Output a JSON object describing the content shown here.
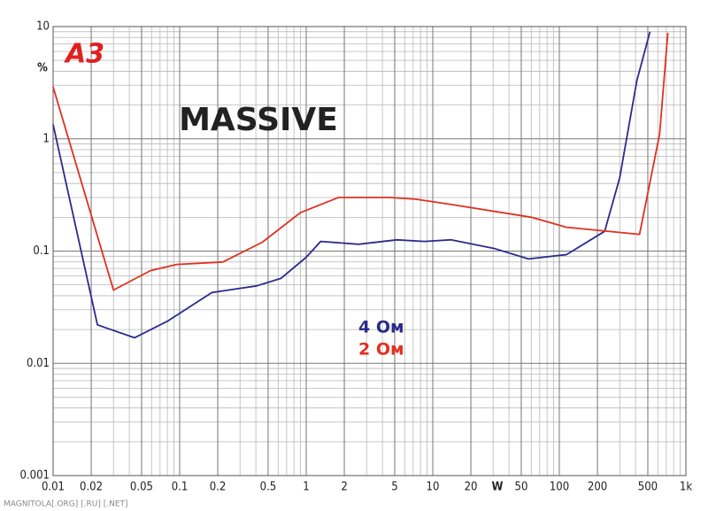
{
  "chart_data": {
    "type": "line",
    "title": "MASSIVE",
    "logo": "A3",
    "x_label": "W",
    "y_label": "%",
    "footer": "MAGNITOLA[.ORG] [.RU] [.NET]",
    "x_scale": "log",
    "y_scale": "log",
    "grid": true,
    "minor_grid": true,
    "xlim": [
      0.01,
      1000
    ],
    "ylim": [
      0.001,
      10
    ],
    "xticks": [
      0.01,
      0.02,
      0.05,
      0.1,
      0.2,
      0.5,
      1,
      2,
      5,
      10,
      20,
      50,
      100,
      200,
      500,
      {
        "value": 1000,
        "label": "1k"
      }
    ],
    "yticks": [
      0.001,
      0.01,
      0.1,
      1,
      10
    ],
    "series": [
      {
        "name": "4 Ом",
        "color": "#2b2b8c",
        "x": [
          0.01,
          0.0224,
          0.044,
          0.081,
          0.18,
          0.406,
          0.63,
          1,
          1.3,
          2.6,
          5.2,
          8.6,
          13.9,
          31,
          57,
          114,
          228,
          300,
          410,
          520
        ],
        "y": [
          1.34,
          0.022,
          0.0169,
          0.0239,
          0.0427,
          0.049,
          0.057,
          0.088,
          0.122,
          0.115,
          0.126,
          0.122,
          0.126,
          0.105,
          0.085,
          0.093,
          0.15,
          0.45,
          3.3,
          9
        ]
      },
      {
        "name": "2 Ом",
        "color": "#e03020",
        "x": [
          0.01,
          0.03,
          0.059,
          0.095,
          0.22,
          0.45,
          0.9,
          1.8,
          4.6,
          7.3,
          14,
          60,
          114,
          430,
          620,
          720
        ],
        "y": [
          2.9,
          0.045,
          0.067,
          0.076,
          0.08,
          0.12,
          0.22,
          0.3,
          0.3,
          0.29,
          0.26,
          0.2,
          0.163,
          0.141,
          1.1,
          8.8
        ]
      }
    ]
  }
}
